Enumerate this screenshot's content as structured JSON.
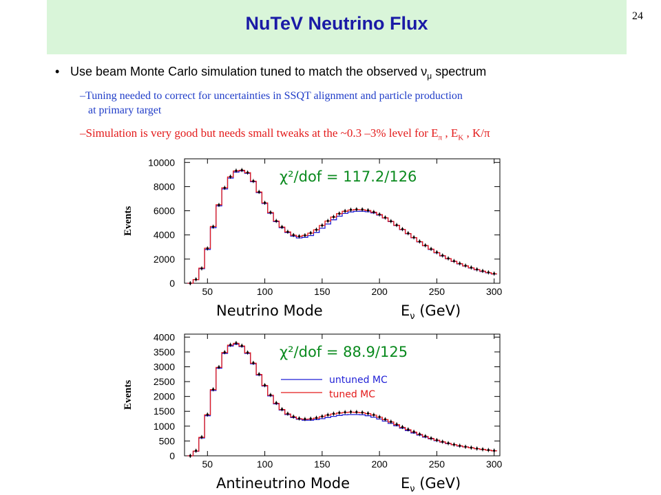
{
  "slide": {
    "title": "NuTeV Neutrino Flux",
    "page_number": "24",
    "bullet": "Use beam Monte Carlo simulation tuned to match the observed ν",
    "bullet_sub": "μ",
    "bullet_tail": " spectrum",
    "sub1_dash": "–",
    "sub1_line1": "Tuning needed to correct for uncertainties in SSQT alignment and particle production",
    "sub1_line2": "at primary target",
    "sub2_dash": "–",
    "sub2_text": "Simulation is very good but needs small tweaks at the ~0.3 –3% level for E",
    "sub2_pi": "π",
    "sub2_mid": " , E",
    "sub2_k": "K",
    "sub2_tail": " , K/π"
  },
  "colors": {
    "title_band": "#d9f5d9",
    "title_text": "#1a1aa6",
    "data": "#000000",
    "untuned_mc": "#1f1fd6",
    "tuned_mc": "#e31a1a",
    "chi2": "#0a8a1e",
    "sub1": "#1f3cc8",
    "sub2": "#e31a1a"
  },
  "chart_data": [
    {
      "type": "line",
      "title": "",
      "mode_label": "Neutrino Mode",
      "xlabel_E": "E",
      "xlabel_sub": "ν",
      "xlabel_unit": " (GeV)",
      "ylabel": "Events",
      "chi2_text": "χ²/dof = 117.2/126",
      "xlim": [
        30,
        305
      ],
      "ylim": [
        0,
        10300
      ],
      "xticks": [
        50,
        100,
        150,
        200,
        250,
        300
      ],
      "yticks": [
        0,
        2000,
        4000,
        6000,
        8000,
        10000
      ],
      "x": [
        35,
        40,
        45,
        50,
        55,
        60,
        65,
        70,
        75,
        80,
        85,
        90,
        95,
        100,
        105,
        110,
        115,
        120,
        125,
        130,
        135,
        140,
        145,
        150,
        155,
        160,
        165,
        170,
        175,
        180,
        185,
        190,
        195,
        200,
        205,
        210,
        215,
        220,
        225,
        230,
        235,
        240,
        245,
        250,
        255,
        260,
        265,
        270,
        275,
        280,
        285,
        290,
        295,
        300
      ],
      "series": [
        {
          "name": "untuned MC",
          "values": [
            0,
            300,
            1200,
            2800,
            4600,
            6400,
            7800,
            8700,
            9200,
            9300,
            9100,
            8400,
            7500,
            6600,
            5800,
            5100,
            4600,
            4200,
            3900,
            3750,
            3800,
            3950,
            4200,
            4550,
            4900,
            5250,
            5550,
            5780,
            5900,
            5950,
            5960,
            5920,
            5820,
            5640,
            5400,
            5100,
            4780,
            4440,
            4100,
            3760,
            3420,
            3100,
            2800,
            2520,
            2260,
            2020,
            1800,
            1600,
            1420,
            1260,
            1110,
            980,
            860,
            760
          ]
        },
        {
          "name": "tuned MC",
          "values": [
            0,
            300,
            1250,
            2900,
            4700,
            6500,
            7900,
            8800,
            9300,
            9350,
            9150,
            8450,
            7550,
            6650,
            5850,
            5150,
            4650,
            4250,
            3980,
            3880,
            3960,
            4150,
            4420,
            4780,
            5150,
            5480,
            5760,
            5960,
            6060,
            6100,
            6090,
            6020,
            5880,
            5680,
            5420,
            5120,
            4800,
            4460,
            4120,
            3780,
            3440,
            3120,
            2820,
            2540,
            2280,
            2040,
            1820,
            1620,
            1440,
            1280,
            1130,
            1000,
            880,
            780
          ]
        },
        {
          "name": "data",
          "values": [
            0,
            320,
            1230,
            2880,
            4680,
            6480,
            7900,
            8820,
            9320,
            9370,
            9160,
            8460,
            7560,
            6660,
            5860,
            5160,
            4660,
            4260,
            3990,
            3890,
            3970,
            4160,
            4430,
            4790,
            5160,
            5490,
            5770,
            5980,
            6080,
            6120,
            6110,
            6040,
            5900,
            5700,
            5440,
            5140,
            4820,
            4480,
            4140,
            3800,
            3460,
            3140,
            2840,
            2560,
            2300,
            2060,
            1840,
            1640,
            1460,
            1300,
            1150,
            1020,
            900,
            800
          ]
        }
      ]
    },
    {
      "type": "line",
      "title": "",
      "mode_label": "Antineutrino Mode",
      "xlabel_E": "E",
      "xlabel_sub": "ν",
      "xlabel_unit": " (GeV)",
      "ylabel": "Events",
      "chi2_text": "χ²/dof = 88.9/125",
      "legend": [
        "untuned MC",
        "tuned MC"
      ],
      "xlim": [
        30,
        305
      ],
      "ylim": [
        0,
        4100
      ],
      "xticks": [
        50,
        100,
        150,
        200,
        250,
        300
      ],
      "yticks": [
        0,
        500,
        1000,
        1500,
        2000,
        2500,
        3000,
        3500,
        4000
      ],
      "x": [
        35,
        40,
        45,
        50,
        55,
        60,
        65,
        70,
        75,
        80,
        85,
        90,
        95,
        100,
        105,
        110,
        115,
        120,
        125,
        130,
        135,
        140,
        145,
        150,
        155,
        160,
        165,
        170,
        175,
        180,
        185,
        190,
        195,
        200,
        205,
        210,
        215,
        220,
        225,
        230,
        235,
        240,
        245,
        250,
        255,
        260,
        265,
        270,
        275,
        280,
        285,
        290,
        295,
        300
      ],
      "series": [
        {
          "name": "untuned MC",
          "values": [
            0,
            150,
            600,
            1350,
            2200,
            2950,
            3450,
            3700,
            3760,
            3680,
            3450,
            3100,
            2720,
            2350,
            2020,
            1750,
            1540,
            1390,
            1290,
            1230,
            1200,
            1200,
            1220,
            1250,
            1290,
            1330,
            1360,
            1380,
            1390,
            1390,
            1380,
            1350,
            1300,
            1240,
            1170,
            1090,
            1010,
            930,
            850,
            770,
            700,
            630,
            570,
            510,
            460,
            410,
            370,
            330,
            300,
            270,
            240,
            215,
            190,
            170
          ]
        },
        {
          "name": "tuned MC",
          "values": [
            0,
            160,
            620,
            1380,
            2230,
            2980,
            3480,
            3730,
            3790,
            3700,
            3470,
            3120,
            2740,
            2370,
            2040,
            1770,
            1560,
            1410,
            1310,
            1250,
            1230,
            1240,
            1270,
            1320,
            1370,
            1410,
            1440,
            1460,
            1470,
            1465,
            1450,
            1420,
            1370,
            1300,
            1220,
            1140,
            1050,
            960,
            880,
            800,
            720,
            650,
            585,
            525,
            470,
            420,
            375,
            335,
            300,
            270,
            240,
            215,
            190,
            170
          ]
        },
        {
          "name": "data",
          "values": [
            0,
            170,
            630,
            1390,
            2240,
            2990,
            3490,
            3740,
            3800,
            3710,
            3480,
            3130,
            2750,
            2380,
            2050,
            1780,
            1570,
            1420,
            1320,
            1260,
            1240,
            1250,
            1280,
            1330,
            1380,
            1420,
            1450,
            1470,
            1480,
            1475,
            1460,
            1430,
            1380,
            1310,
            1230,
            1150,
            1060,
            970,
            890,
            810,
            730,
            660,
            590,
            530,
            475,
            425,
            380,
            340,
            305,
            275,
            245,
            220,
            195,
            175
          ]
        }
      ]
    }
  ]
}
